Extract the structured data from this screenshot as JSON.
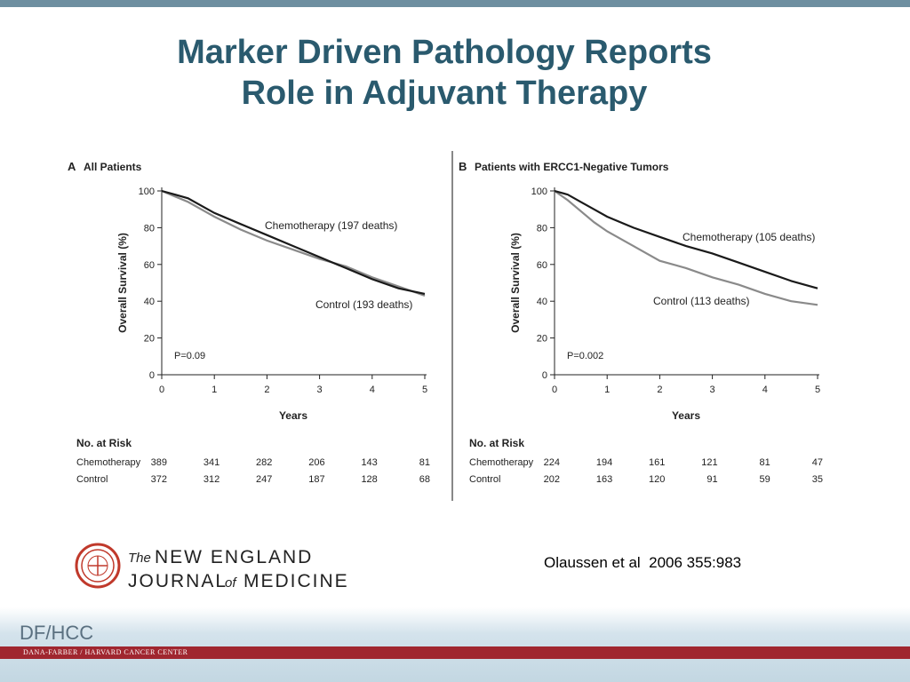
{
  "slide": {
    "title_line1": "Marker Driven Pathology Reports",
    "title_line2": "Role in Adjuvant Therapy",
    "citation": "Olaussen et al  2006 355:983",
    "logo": {
      "the": "The",
      "line1": "NEW ENGLAND",
      "journal": "JOURNAL",
      "of": "of",
      "medicine": "MEDICINE"
    },
    "footer": {
      "acronym": "DF/HCC",
      "org": "DANA-FARBER / HARVARD CANCER CENTER"
    },
    "colors": {
      "title": "#2a5a6e",
      "top_bar": "#6e8fa0",
      "footer_red": "#a0262f",
      "chemo_line": "#1a1a1a",
      "control_line": "#8a8a8a"
    }
  },
  "chart_data": [
    {
      "type": "line",
      "panel_letter": "A",
      "title": "All Patients",
      "xlabel": "Years",
      "ylabel": "Overall Survival (%)",
      "xlim": [
        0,
        5
      ],
      "ylim": [
        0,
        100
      ],
      "x_ticks": [
        0,
        1,
        2,
        3,
        4,
        5
      ],
      "y_ticks": [
        0,
        20,
        40,
        60,
        80,
        100
      ],
      "p_value": "P=0.09",
      "series": [
        {
          "name": "Chemotherapy (197 deaths)",
          "color": "#1a1a1a",
          "x": [
            0,
            0.25,
            0.5,
            0.75,
            1,
            1.5,
            2,
            2.5,
            3,
            3.5,
            4,
            4.5,
            5
          ],
          "y": [
            100,
            98,
            96,
            92,
            88,
            82,
            76,
            70,
            64,
            58,
            52,
            47,
            44
          ]
        },
        {
          "name": "Control (193 deaths)",
          "color": "#8a8a8a",
          "x": [
            0,
            0.25,
            0.5,
            0.75,
            1,
            1.5,
            2,
            2.5,
            3,
            3.5,
            4,
            4.5,
            5
          ],
          "y": [
            100,
            97,
            94,
            90,
            86,
            79,
            73,
            68,
            63,
            59,
            53,
            48,
            43
          ]
        }
      ],
      "risk_table": {
        "header": "No. at Risk",
        "rows": [
          {
            "label": "Chemotherapy",
            "values": [
              "389",
              "341",
              "282",
              "206",
              "143",
              "81"
            ]
          },
          {
            "label": "Control",
            "values": [
              "372",
              "312",
              "247",
              "187",
              "128",
              "68"
            ]
          }
        ]
      }
    },
    {
      "type": "line",
      "panel_letter": "B",
      "title": "Patients with ERCC1-Negative Tumors",
      "xlabel": "Years",
      "ylabel": "Overall Survival (%)",
      "xlim": [
        0,
        5
      ],
      "ylim": [
        0,
        100
      ],
      "x_ticks": [
        0,
        1,
        2,
        3,
        4,
        5
      ],
      "y_ticks": [
        0,
        20,
        40,
        60,
        80,
        100
      ],
      "p_value": "P=0.002",
      "series": [
        {
          "name": "Chemotherapy (105 deaths)",
          "color": "#1a1a1a",
          "x": [
            0,
            0.25,
            0.5,
            0.75,
            1,
            1.5,
            2,
            2.5,
            3,
            3.5,
            4,
            4.5,
            5
          ],
          "y": [
            100,
            98,
            94,
            90,
            86,
            80,
            75,
            70,
            66,
            61,
            56,
            51,
            47
          ]
        },
        {
          "name": "Control (113 deaths)",
          "color": "#8a8a8a",
          "x": [
            0,
            0.25,
            0.5,
            0.75,
            1,
            1.5,
            2,
            2.5,
            3,
            3.5,
            4,
            4.5,
            5
          ],
          "y": [
            100,
            95,
            89,
            83,
            78,
            70,
            62,
            58,
            53,
            49,
            44,
            40,
            38
          ]
        }
      ],
      "risk_table": {
        "header": "No. at Risk",
        "rows": [
          {
            "label": "Chemotherapy",
            "values": [
              "224",
              "194",
              "161",
              "121",
              "81",
              "47"
            ]
          },
          {
            "label": "Control",
            "values": [
              "202",
              "163",
              "120",
              "91",
              "59",
              "35"
            ]
          }
        ]
      }
    }
  ]
}
